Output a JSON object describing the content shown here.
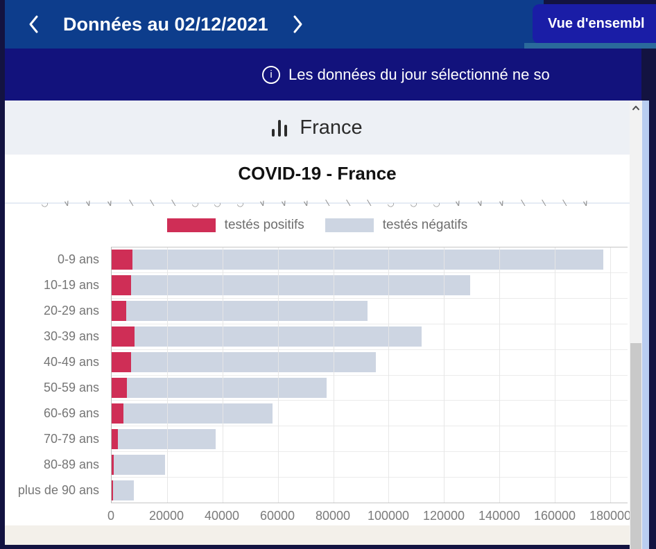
{
  "colors": {
    "topbar_bg": "#0d3d8c",
    "banner_bg": "#12127c",
    "page_bg": "#131341",
    "button_bg": "#1a1da6",
    "card_header_bg": "#edf0f5",
    "positive": "#cf2e56",
    "negative": "#cdd5e2",
    "scroll_strip": "#b9cdf0"
  },
  "icons": {
    "prev": "chevron-left",
    "next": "chevron-right",
    "info": "info-circle",
    "region": "bar-chart",
    "scroll_up": "chevron-up"
  },
  "topbar": {
    "date_label": "Données au 02/12/2021",
    "overview_button": "Vue d'ensembl"
  },
  "banner": {
    "message": "Les données du jour sélectionné ne so"
  },
  "panel": {
    "region_title": "France"
  },
  "chart_data": {
    "type": "bar",
    "orientation": "horizontal",
    "stacked": true,
    "title": "COVID-19 - France",
    "categories": [
      "0-9 ans",
      "10-19 ans",
      "20-29 ans",
      "30-39 ans",
      "40-49 ans",
      "50-59 ans",
      "60-69 ans",
      "70-79 ans",
      "80-89 ans",
      "plus de 90 ans"
    ],
    "series": [
      {
        "name": "testés positifs",
        "color": "#cf2e56",
        "values": [
          7400,
          6900,
          5200,
          8200,
          7000,
          5500,
          4200,
          2200,
          800,
          400
        ]
      },
      {
        "name": "testés négatifs",
        "color": "#cdd5e2",
        "values": [
          170100,
          122600,
          87200,
          103800,
          88500,
          72000,
          54000,
          35300,
          18400,
          7600
        ]
      }
    ],
    "x_ticks": [
      0,
      20000,
      40000,
      60000,
      80000,
      100000,
      120000,
      140000,
      160000,
      180000
    ],
    "xlim": [
      0,
      186250
    ],
    "grid": true,
    "legend_position": "top"
  },
  "decor": {
    "clipped_axis_marks": [
      "◡",
      "∨",
      "∨",
      "∨",
      "∖",
      "∖",
      "∖",
      "◡",
      "◡",
      "◡",
      "∨",
      "∨",
      "∨",
      "∖",
      "∖",
      "∖",
      "◡",
      "◡",
      "◡",
      "∨",
      "∨",
      "∨",
      "∖",
      "∖",
      "∖",
      "∨"
    ]
  }
}
